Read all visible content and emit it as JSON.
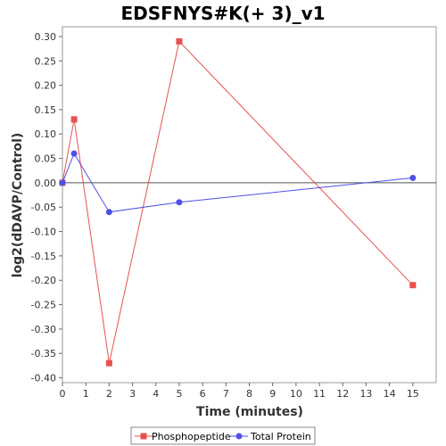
{
  "chart_data": {
    "type": "line",
    "title": "EDSFNYS#K(+ 3)_v1",
    "xlabel": "Time (minutes)",
    "ylabel": "log2(dDAVP/Control)",
    "xlim": [
      0,
      16
    ],
    "ylim": [
      -0.41,
      0.32
    ],
    "xticks": [
      0,
      1,
      2,
      3,
      4,
      5,
      6,
      7,
      8,
      9,
      10,
      11,
      12,
      13,
      14,
      15
    ],
    "yticks": [
      0.3,
      0.25,
      0.2,
      0.15,
      0.1,
      0.05,
      0.0,
      -0.05,
      -0.1,
      -0.15,
      -0.2,
      -0.25,
      -0.3,
      -0.35,
      -0.4
    ],
    "ytick_labels": [
      "0.30",
      "0.25",
      "0.20",
      "0.15",
      "0.10",
      "0.05",
      "0.00",
      "-0.05",
      "-0.10",
      "-0.15",
      "-0.20",
      "-0.25",
      "-0.30",
      "-0.35",
      "-0.40"
    ],
    "zero_line": true,
    "legend_position": "bottom",
    "series": [
      {
        "name": "Phosphopeptide",
        "color": "#e8504f",
        "marker": "square",
        "x": [
          0,
          0.5,
          2,
          5,
          15
        ],
        "y": [
          0.0,
          0.13,
          -0.37,
          0.29,
          -0.21
        ]
      },
      {
        "name": "Total Protein",
        "color": "#4f4fe8",
        "marker": "circle",
        "x": [
          0,
          0.5,
          2,
          5,
          15
        ],
        "y": [
          0.0,
          0.06,
          -0.06,
          -0.04,
          0.01
        ]
      }
    ]
  }
}
